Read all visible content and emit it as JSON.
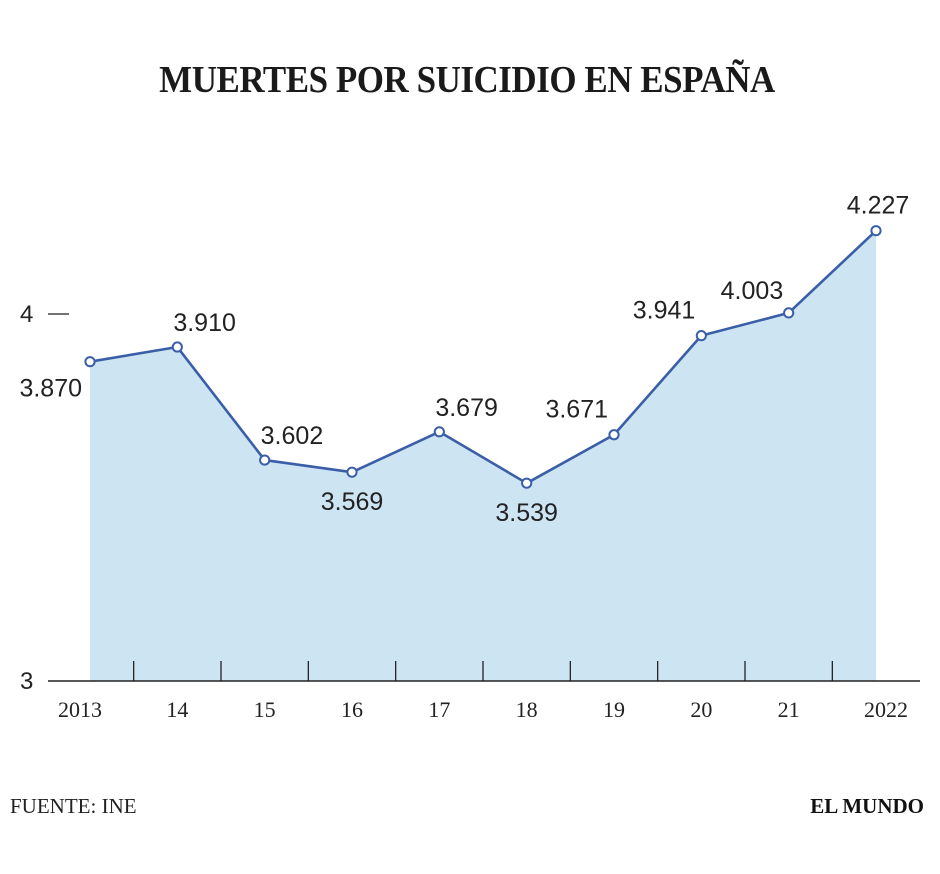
{
  "title": "MUERTES POR SUICIDIO EN ESPAÑA",
  "source": "FUENTE: INE",
  "brand": "EL MUNDO",
  "colors": {
    "line": "#3a5ea8",
    "fill": "#cde4f3",
    "axis": "#222222",
    "text": "#222222"
  },
  "chart_data": {
    "type": "area",
    "title": "MUERTES POR SUICIDIO EN ESPAÑA",
    "x": [
      "2013",
      "14",
      "15",
      "16",
      "17",
      "18",
      "19",
      "20",
      "21",
      "2022"
    ],
    "series": [
      {
        "values": [
          3.87,
          3.91,
          3.602,
          3.569,
          3.679,
          3.539,
          3.671,
          3.941,
          4.003,
          4.227
        ],
        "labels": [
          "3.870",
          "3.910",
          "3.602",
          "3.569",
          "3.679",
          "3.539",
          "3.671",
          "3.941",
          "4.003",
          "4.227"
        ]
      }
    ],
    "yticks": [
      "3",
      "4"
    ],
    "ylim": [
      3,
      4.3
    ],
    "grid": false,
    "legend": "none"
  }
}
